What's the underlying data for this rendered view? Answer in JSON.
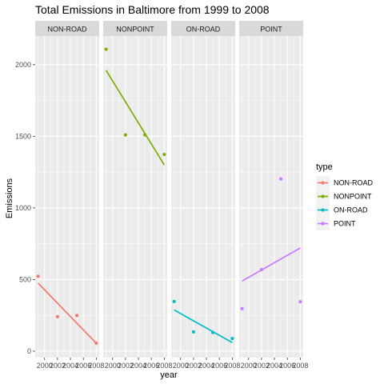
{
  "chart_data": {
    "type": "scatter",
    "title": "Total Emissions in Baltimore from 1999 to 2008",
    "xlabel": "year",
    "ylabel": "Emissions",
    "x_ticks": [
      2000,
      2002,
      2004,
      2006,
      2008
    ],
    "y_ticks": [
      0,
      500,
      1000,
      1500,
      2000
    ],
    "xlim": [
      1998.55,
      2008.45
    ],
    "ylim": [
      -45,
      2200
    ],
    "grid": true,
    "legend": {
      "title": "type",
      "position": "right",
      "entries": [
        "NON-ROAD",
        "NONPOINT",
        "ON-ROAD",
        "POINT"
      ]
    },
    "facets": [
      "NON-ROAD",
      "NONPOINT",
      "ON-ROAD",
      "POINT"
    ],
    "series": [
      {
        "name": "NON-ROAD",
        "color": "#F8766D",
        "points": [
          [
            1999,
            522.9
          ],
          [
            2002,
            240.8
          ],
          [
            2005,
            248.9
          ],
          [
            2008,
            55.8
          ]
        ],
        "trend": [
          [
            1999,
            475
          ],
          [
            2008,
            55
          ]
        ]
      },
      {
        "name": "NONPOINT",
        "color": "#7CAE00",
        "points": [
          [
            1999,
            2107.6
          ],
          [
            2002,
            1509.5
          ],
          [
            2005,
            1509.5
          ],
          [
            2008,
            1373.2
          ]
        ],
        "trend": [
          [
            1999,
            1960
          ],
          [
            2008,
            1300
          ]
        ]
      },
      {
        "name": "ON-ROAD",
        "color": "#00BFC4",
        "points": [
          [
            1999,
            346.8
          ],
          [
            2002,
            134.3
          ],
          [
            2005,
            130.4
          ],
          [
            2008,
            88.3
          ]
        ],
        "trend": [
          [
            1999,
            288
          ],
          [
            2008,
            60
          ]
        ]
      },
      {
        "name": "POINT",
        "color": "#C77CFF",
        "points": [
          [
            1999,
            296.8
          ],
          [
            2002,
            569.3
          ],
          [
            2005,
            1202.5
          ],
          [
            2008,
            345.0
          ]
        ],
        "trend": [
          [
            1999,
            490
          ],
          [
            2008,
            720
          ]
        ]
      }
    ]
  }
}
